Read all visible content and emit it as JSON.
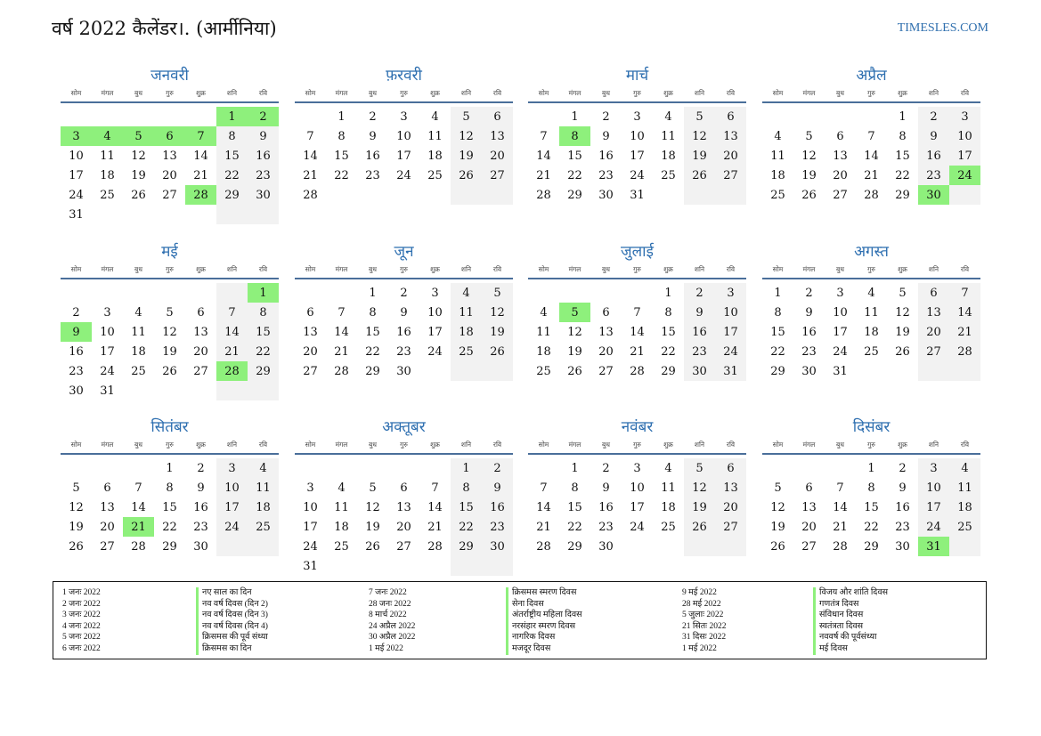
{
  "title": "वर्ष 2022 कैलेंडर।. (आर्मीनिया)",
  "site": "TIMESLES.COM",
  "weekdays": [
    "सोम",
    "मंगल",
    "बुध",
    "गुरु",
    "शुक्र",
    "शनि",
    "रवि"
  ],
  "months": [
    {
      "name": "जनवरी",
      "offset": 5,
      "days": 31,
      "holidays": [
        1,
        2,
        3,
        4,
        5,
        6,
        7,
        28
      ]
    },
    {
      "name": "फ़रवरी",
      "offset": 1,
      "days": 28,
      "holidays": []
    },
    {
      "name": "मार्च",
      "offset": 1,
      "days": 31,
      "holidays": [
        8
      ]
    },
    {
      "name": "अप्रैल",
      "offset": 4,
      "days": 30,
      "holidays": [
        24,
        30
      ]
    },
    {
      "name": "मई",
      "offset": 6,
      "days": 31,
      "holidays": [
        1,
        9,
        28
      ]
    },
    {
      "name": "जून",
      "offset": 2,
      "days": 30,
      "holidays": []
    },
    {
      "name": "जुलाई",
      "offset": 4,
      "days": 31,
      "holidays": [
        5
      ]
    },
    {
      "name": "अगस्त",
      "offset": 0,
      "days": 31,
      "holidays": []
    },
    {
      "name": "सितंबर",
      "offset": 3,
      "days": 30,
      "holidays": [
        21
      ]
    },
    {
      "name": "अक्तूबर",
      "offset": 5,
      "days": 31,
      "holidays": []
    },
    {
      "name": "नवंबर",
      "offset": 1,
      "days": 30,
      "holidays": []
    },
    {
      "name": "दिसंबर",
      "offset": 3,
      "days": 31,
      "holidays": [
        31
      ]
    }
  ],
  "holiday_list": [
    {
      "date": "1 जनः 2022",
      "name": "नए साल का दिन"
    },
    {
      "date": "2 जनः 2022",
      "name": "नव वर्ष दिवस (दिन 2)"
    },
    {
      "date": "3 जनः 2022",
      "name": "नव वर्ष दिवस (दिन 3)"
    },
    {
      "date": "4 जनः 2022",
      "name": "नव वर्ष दिवस (दिन 4)"
    },
    {
      "date": "5 जनः 2022",
      "name": "क्रिसमस की पूर्व संध्या"
    },
    {
      "date": "6 जनः 2022",
      "name": "क्रिसमस का दिन"
    },
    {
      "date": "7 जनः 2022",
      "name": "क्रिसमस स्मरण दिवस"
    },
    {
      "date": "28 जनः 2022",
      "name": "सेना दिवस"
    },
    {
      "date": "8 मार्च 2022",
      "name": "अंतर्राष्ट्रीय महिला दिवस"
    },
    {
      "date": "24 अप्रैल 2022",
      "name": "नरसंहार स्मरण दिवस"
    },
    {
      "date": "30 अप्रैल 2022",
      "name": "नागरिक दिवस"
    },
    {
      "date": "1 मई 2022",
      "name": "मजदूर दिवस"
    },
    {
      "date": "9 मई 2022",
      "name": "विजय और शांति दिवस"
    },
    {
      "date": "28 मई 2022",
      "name": "गणतंत्र दिवस"
    },
    {
      "date": "5 जुलाः 2022",
      "name": "संविधान दिवस"
    },
    {
      "date": "21 सितः 2022",
      "name": "स्वतंत्रता दिवस"
    },
    {
      "date": "31 दिसः 2022",
      "name": "नववर्ष की पूर्वसंध्या"
    },
    {
      "date": "1 मई 2022",
      "name": "मई दिवस"
    }
  ],
  "colors": {
    "accent": "#2e6fb0",
    "holiday": "#8ef07c",
    "weekend": "#f2f2f2"
  }
}
